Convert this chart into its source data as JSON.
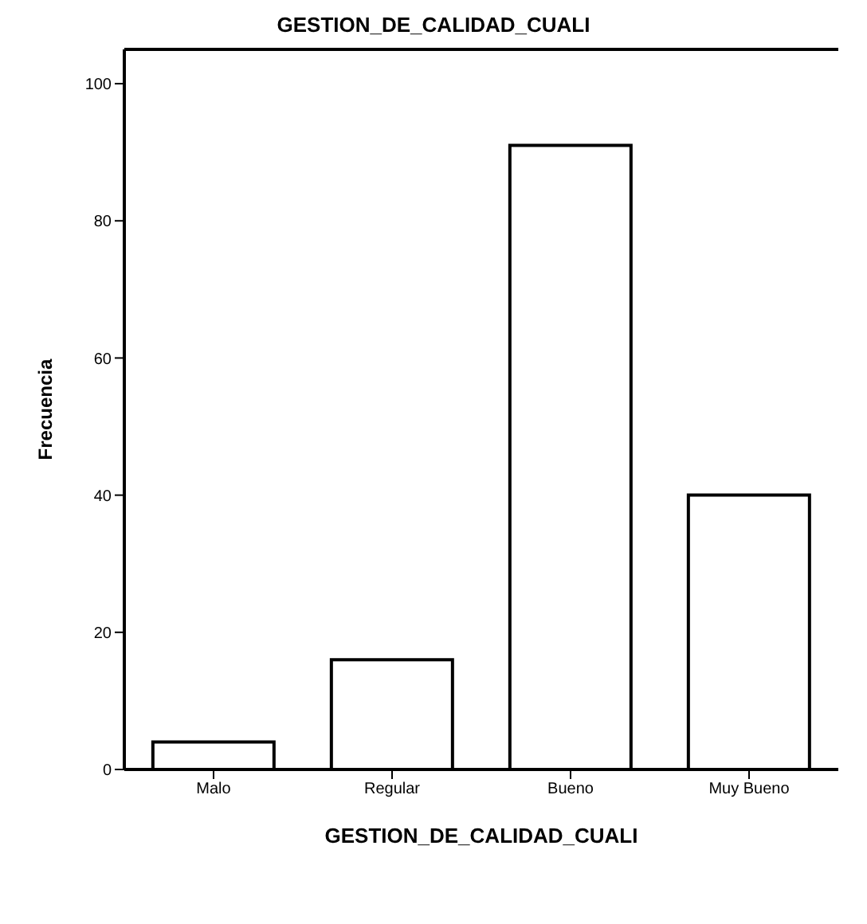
{
  "chart_data": {
    "type": "bar",
    "title": "GESTION_DE_CALIDAD_CUALI",
    "xlabel": "GESTION_DE_CALIDAD_CUALI",
    "ylabel": "Frecuencia",
    "categories": [
      "Malo",
      "Regular",
      "Bueno",
      "Muy Bueno"
    ],
    "values": [
      4,
      16,
      91,
      40
    ],
    "color": "#ffffff",
    "ylim": [
      0,
      105
    ],
    "yticks": [
      0,
      20,
      40,
      60,
      80,
      100
    ],
    "grid": false,
    "legend": false
  }
}
